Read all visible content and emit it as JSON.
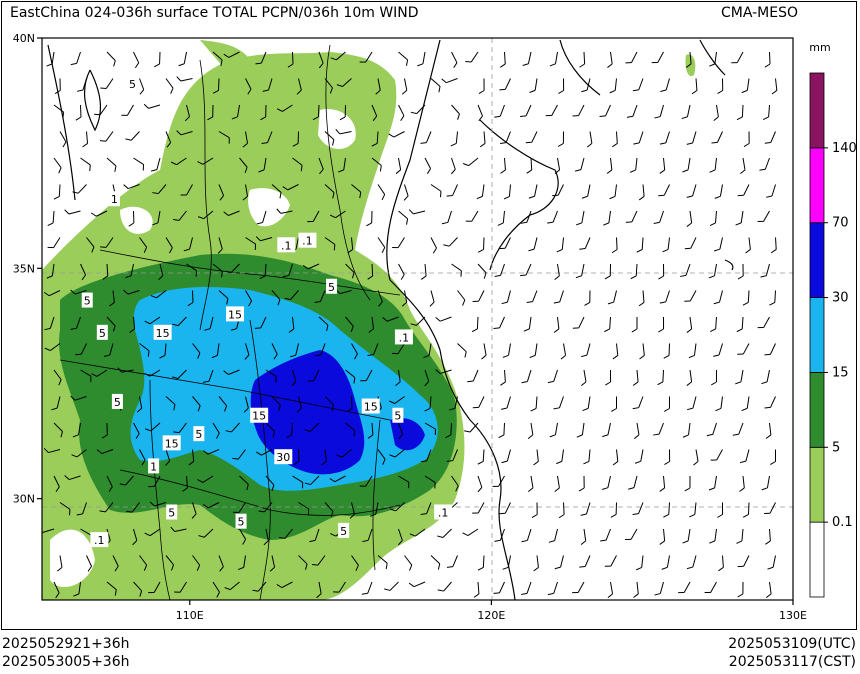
{
  "header": {
    "title": "EastChina 024-036h surface TOTAL PCPN/036h 10m WIND",
    "model": "CMA-MESO"
  },
  "footer": {
    "init_utc": "2025052921+36h",
    "init_cst": "2025053005+36h",
    "valid_utc": "2025053109(UTC)",
    "valid_cst": "2025053117(CST)"
  },
  "axes": {
    "lat_ticks": [
      {
        "label": "40N",
        "value": 40
      },
      {
        "label": "35N",
        "value": 35
      },
      {
        "label": "30N",
        "value": 30
      }
    ],
    "lon_ticks": [
      {
        "label": "110E",
        "value": 110
      },
      {
        "label": "120E",
        "value": 120
      },
      {
        "label": "130E",
        "value": 130
      }
    ],
    "lat_range": [
      27.8,
      40.0
    ],
    "lon_range": [
      105.1,
      130.0
    ]
  },
  "colorbar": {
    "unit": "mm",
    "levels": [
      "0.1",
      "5",
      "15",
      "30",
      "70",
      "140"
    ],
    "colors": [
      "#ffffff",
      "#9acd5a",
      "#2e8b2e",
      "#1ab4ee",
      "#0a0adc",
      "#ff00ff",
      "#8b1461"
    ]
  },
  "contour_labels": [
    {
      "text": "5",
      "lon": 108.1,
      "lat": 39.0
    },
    {
      "text": "1",
      "lon": 107.5,
      "lat": 36.5
    },
    {
      "text": ".1",
      "lon": 113.2,
      "lat": 35.5
    },
    {
      "text": ".1",
      "lon": 113.9,
      "lat": 35.6
    },
    {
      "text": "5",
      "lon": 114.7,
      "lat": 34.6
    },
    {
      "text": "5",
      "lon": 106.6,
      "lat": 34.3
    },
    {
      "text": "15",
      "lon": 111.5,
      "lat": 34.0
    },
    {
      "text": "5",
      "lon": 107.1,
      "lat": 33.6
    },
    {
      "text": "15",
      "lon": 109.1,
      "lat": 33.6
    },
    {
      "text": "5",
      "lon": 107.6,
      "lat": 32.1
    },
    {
      "text": "15",
      "lon": 112.3,
      "lat": 31.8
    },
    {
      "text": "15",
      "lon": 116.0,
      "lat": 32.0
    },
    {
      "text": "5",
      "lon": 116.9,
      "lat": 31.8
    },
    {
      "text": "15",
      "lon": 109.4,
      "lat": 31.2
    },
    {
      "text": "5",
      "lon": 110.3,
      "lat": 31.4
    },
    {
      "text": "30",
      "lon": 113.1,
      "lat": 30.9
    },
    {
      "text": "5",
      "lon": 109.4,
      "lat": 29.7
    },
    {
      "text": "5",
      "lon": 111.7,
      "lat": 29.5
    },
    {
      "text": "5",
      "lon": 115.1,
      "lat": 29.3
    },
    {
      "text": "1",
      "lon": 108.8,
      "lat": 30.7
    },
    {
      "text": ".1",
      "lon": 107.0,
      "lat": 29.1
    },
    {
      "text": ".1",
      "lon": 118.4,
      "lat": 29.7
    },
    {
      "text": ".1",
      "lon": 117.1,
      "lat": 33.5
    }
  ]
}
